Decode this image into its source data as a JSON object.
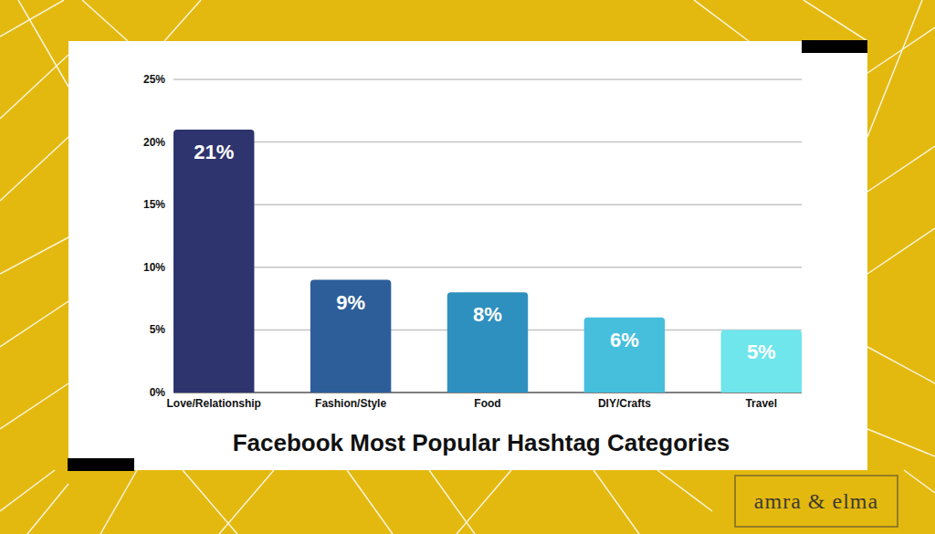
{
  "chart_data": {
    "type": "bar",
    "title": "Facebook Most Popular Hashtag Categories",
    "categories": [
      "Love/Relationship",
      "Fashion/Style",
      "Food",
      "DIY/Crafts",
      "Travel"
    ],
    "values": [
      21,
      9,
      8,
      6,
      5
    ],
    "value_labels": [
      "21%",
      "9%",
      "8%",
      "6%",
      "5%"
    ],
    "colors": [
      "#2e346e",
      "#2d5e9a",
      "#2e90bf",
      "#45bfdc",
      "#6ee6ec"
    ],
    "ylim": [
      0,
      25
    ],
    "yticks": [
      {
        "value": 0,
        "label": "0%"
      },
      {
        "value": 5,
        "label": "5%"
      },
      {
        "value": 10,
        "label": "10%"
      },
      {
        "value": 15,
        "label": "15%"
      },
      {
        "value": 20,
        "label": "20%"
      },
      {
        "value": 25,
        "label": "25%"
      }
    ],
    "grid": true,
    "data_labels": true,
    "annotations": [
      "amra & elma"
    ]
  }
}
